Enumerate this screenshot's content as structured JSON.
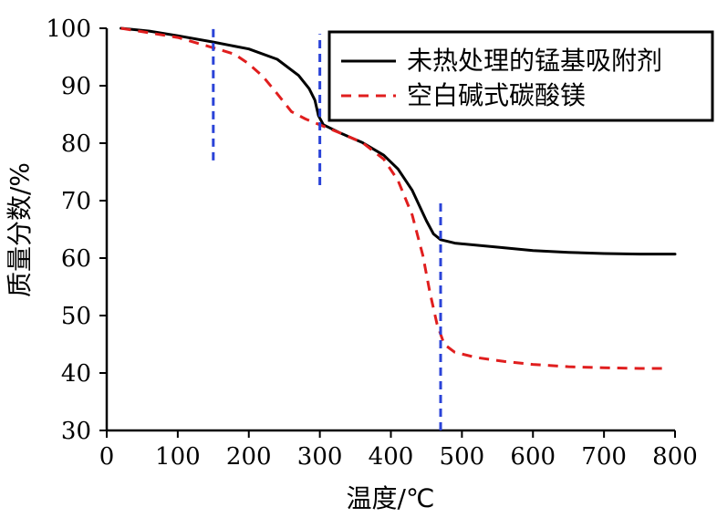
{
  "chart_data": {
    "type": "line",
    "title": "",
    "xlabel": "温度/℃",
    "ylabel": "质量分数/%",
    "xlim": [
      0,
      800
    ],
    "ylim": [
      30,
      100
    ],
    "x_ticks": [
      0,
      100,
      200,
      300,
      400,
      500,
      600,
      700,
      800
    ],
    "y_ticks": [
      30,
      40,
      50,
      60,
      70,
      80,
      90,
      100
    ],
    "grid": false,
    "legend_position": "top-right",
    "series": [
      {
        "name": "未热处理的锰基吸附剂",
        "color": "#000000",
        "line_style": "solid",
        "points": [
          [
            20,
            100
          ],
          [
            60,
            99.5
          ],
          [
            100,
            98.7
          ],
          [
            150,
            97.6
          ],
          [
            200,
            96.4
          ],
          [
            240,
            94.6
          ],
          [
            270,
            91.8
          ],
          [
            285,
            89.5
          ],
          [
            293,
            87.5
          ],
          [
            298,
            84.8
          ],
          [
            305,
            83.2
          ],
          [
            330,
            81.7
          ],
          [
            360,
            80.1
          ],
          [
            390,
            77.9
          ],
          [
            410,
            75.5
          ],
          [
            430,
            71.8
          ],
          [
            450,
            66.5
          ],
          [
            460,
            64.2
          ],
          [
            470,
            63.2
          ],
          [
            490,
            62.6
          ],
          [
            550,
            61.9
          ],
          [
            600,
            61.3
          ],
          [
            650,
            61.0
          ],
          [
            700,
            60.8
          ],
          [
            750,
            60.7
          ],
          [
            800,
            60.7
          ]
        ]
      },
      {
        "name": "空白碱式碳酸镁",
        "color": "#e01e1e",
        "line_style": "dashed",
        "points": [
          [
            20,
            100
          ],
          [
            60,
            99.2
          ],
          [
            100,
            98.4
          ],
          [
            150,
            96.6
          ],
          [
            180,
            95.5
          ],
          [
            200,
            93.8
          ],
          [
            220,
            91.6
          ],
          [
            240,
            88.6
          ],
          [
            260,
            85.5
          ],
          [
            280,
            84.2
          ],
          [
            300,
            83.2
          ],
          [
            330,
            81.7
          ],
          [
            360,
            80.1
          ],
          [
            390,
            77.2
          ],
          [
            410,
            73.5
          ],
          [
            430,
            67.5
          ],
          [
            445,
            60.5
          ],
          [
            455,
            54.0
          ],
          [
            465,
            48.5
          ],
          [
            475,
            45.0
          ],
          [
            490,
            43.6
          ],
          [
            520,
            42.7
          ],
          [
            560,
            42.0
          ],
          [
            600,
            41.5
          ],
          [
            650,
            41.1
          ],
          [
            700,
            40.9
          ],
          [
            750,
            40.8
          ],
          [
            790,
            40.8
          ]
        ]
      }
    ],
    "annotations": [
      {
        "type": "vertical-dashed-line",
        "x": 150,
        "y_range": [
          77,
          100
        ],
        "color": "#2a43d8"
      },
      {
        "type": "vertical-dashed-line",
        "x": 300,
        "y_range": [
          72.7,
          99
        ],
        "color": "#2a43d8"
      },
      {
        "type": "vertical-dashed-line",
        "x": 470,
        "y_range": [
          30,
          70
        ],
        "color": "#2a43d8"
      }
    ]
  }
}
